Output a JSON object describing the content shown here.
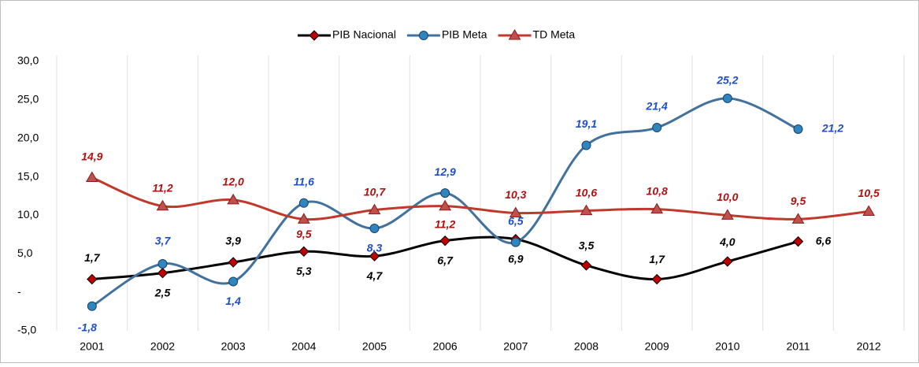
{
  "chart_data": {
    "type": "line",
    "categories": [
      "2001",
      "2002",
      "2003",
      "2004",
      "2005",
      "2006",
      "2007",
      "2008",
      "2009",
      "2010",
      "2011",
      "2012"
    ],
    "series": [
      {
        "name": "PIB Nacional",
        "color": "#000000",
        "marker_color": "#c00000",
        "label_color": "#000000",
        "values": [
          1.7,
          2.5,
          3.9,
          5.3,
          4.7,
          6.7,
          6.9,
          3.5,
          1.7,
          4.0,
          6.6,
          null
        ],
        "value_labels": [
          "1,7",
          "2,5",
          "3,9",
          "5,3",
          "4,7",
          "6,7",
          "6,9",
          "3,5",
          "1,7",
          "4,0",
          "6,6",
          null
        ]
      },
      {
        "name": "PIB Meta",
        "color": "#41719c",
        "marker_color": "#2e86c1",
        "label_color": "#1f4fc4",
        "values": [
          -1.8,
          3.7,
          1.4,
          11.6,
          8.3,
          12.9,
          6.5,
          19.1,
          21.4,
          25.2,
          21.2,
          null
        ],
        "value_labels": [
          "-1,8",
          "3,7",
          "1,4",
          "11,6",
          "8,3",
          "12,9",
          "6,5",
          "19,1",
          "21,4",
          "25,2",
          "21,2",
          null
        ]
      },
      {
        "name": "TD Meta",
        "color": "#c0392b",
        "marker_color": "#c0504d",
        "label_color": "#b01010",
        "values": [
          14.9,
          11.2,
          12.0,
          9.5,
          10.7,
          11.2,
          10.3,
          10.6,
          10.8,
          10.0,
          9.5,
          10.5
        ],
        "value_labels": [
          "14,9",
          "11,2",
          "12,0",
          "9,5",
          "10,7",
          "11,2",
          "10,3",
          "10,6",
          "10,8",
          "10,0",
          "9,5",
          "10,5"
        ]
      }
    ],
    "ylim": [
      -5,
      30
    ],
    "yticks": [
      {
        "value": -5,
        "label": "-5,0"
      },
      {
        "value": 0,
        "label": "-"
      },
      {
        "value": 5,
        "label": "5,0"
      },
      {
        "value": 10,
        "label": "10,0"
      },
      {
        "value": 15,
        "label": "15,0"
      },
      {
        "value": 20,
        "label": "20,0"
      },
      {
        "value": 25,
        "label": "25,0"
      },
      {
        "value": 30,
        "label": "30,0"
      }
    ],
    "grid": true,
    "legend": "top",
    "smooth": true
  }
}
